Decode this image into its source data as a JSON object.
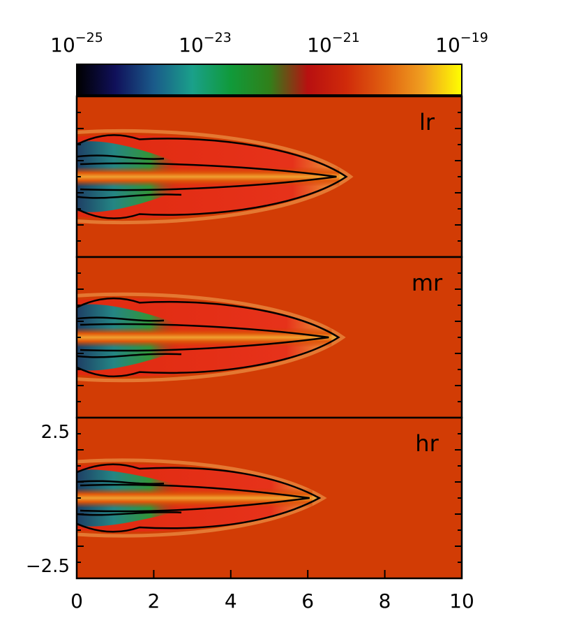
{
  "chart_data": {
    "type": "heatmap",
    "colorbar": {
      "scale": "log",
      "range": [
        1e-25,
        1e-19
      ],
      "tick_values": [
        1e-25,
        1e-23,
        1e-21,
        1e-19
      ],
      "tick_labels": [
        {
          "base": "10",
          "exp": "−25"
        },
        {
          "base": "10",
          "exp": "−23"
        },
        {
          "base": "10",
          "exp": "−21"
        },
        {
          "base": "10",
          "exp": "−19"
        }
      ],
      "colors": [
        "#000000",
        "#10105a",
        "#1a5a8a",
        "#1aa08a",
        "#109a3a",
        "#30801a",
        "#b81010",
        "#d02a0a",
        "#e06010",
        "#f0a020",
        "#ffff00"
      ]
    },
    "xaxis": {
      "range": [
        0,
        10
      ],
      "tick_values": [
        0,
        2,
        4,
        6,
        8,
        10
      ],
      "tick_labels": [
        "0",
        "2",
        "4",
        "6",
        "8",
        "10"
      ]
    },
    "yaxis": {
      "range": [
        -3,
        3
      ],
      "tick_values": [
        2.5,
        -2.5
      ],
      "tick_labels": [
        "2.5",
        "−2.5"
      ]
    },
    "panels": [
      {
        "label": "lr",
        "jet_length": 7.0,
        "jet_half_width": 1.5
      },
      {
        "label": "mr",
        "jet_length": 6.8,
        "jet_half_width": 1.4
      },
      {
        "label": "hr",
        "jet_length": 6.3,
        "jet_half_width": 1.2
      }
    ],
    "colors": {
      "ambient": "#d23c05",
      "jet_body": "#df2a10",
      "jet_core": "#f0a030",
      "cocoon_cold": "#1a6a8a",
      "contour": "#000000"
    }
  }
}
